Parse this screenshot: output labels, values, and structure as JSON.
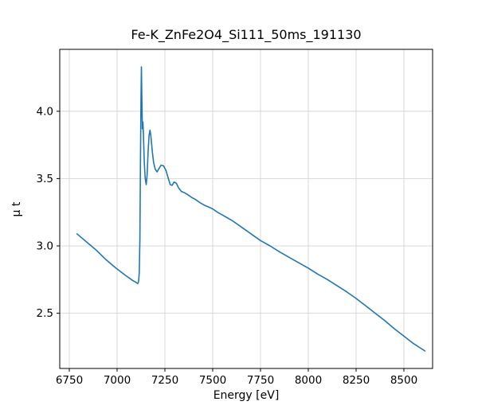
{
  "chart_data": {
    "type": "line",
    "title": "Fe-K_ZnFe2O4_Si111_50ms_191130",
    "xlabel": "Energy [eV]",
    "ylabel": "μ t",
    "xlim": [
      6700,
      8650
    ],
    "ylim": [
      2.09,
      4.46
    ],
    "xticks": [
      6750,
      7000,
      7250,
      7500,
      7750,
      8000,
      8250,
      8500
    ],
    "xtick_labels": [
      "6750",
      "7000",
      "7250",
      "7500",
      "7750",
      "8000",
      "8250",
      "8500"
    ],
    "yticks": [
      2.5,
      3.0,
      3.5,
      4.0
    ],
    "ytick_labels": [
      "2.5",
      "3.0",
      "3.5",
      "4.0"
    ],
    "grid": true,
    "grid_color": "#cfcfcf",
    "axes_color": "#000000",
    "line_color": "#1f77b4",
    "series": [
      {
        "name": "mu_t_spectrum",
        "points": [
          [
            6790,
            3.09
          ],
          [
            6840,
            3.03
          ],
          [
            6890,
            2.97
          ],
          [
            6940,
            2.9
          ],
          [
            6990,
            2.84
          ],
          [
            7040,
            2.785
          ],
          [
            7080,
            2.745
          ],
          [
            7100,
            2.728
          ],
          [
            7108,
            2.72
          ],
          [
            7112,
            2.735
          ],
          [
            7116,
            2.8
          ],
          [
            7119,
            3.05
          ],
          [
            7122,
            3.62
          ],
          [
            7125,
            4.1
          ],
          [
            7127,
            4.33
          ],
          [
            7129,
            4.12
          ],
          [
            7132,
            3.87
          ],
          [
            7135,
            3.92
          ],
          [
            7138,
            3.82
          ],
          [
            7142,
            3.62
          ],
          [
            7147,
            3.5
          ],
          [
            7152,
            3.455
          ],
          [
            7157,
            3.53
          ],
          [
            7162,
            3.7
          ],
          [
            7167,
            3.82
          ],
          [
            7172,
            3.86
          ],
          [
            7177,
            3.81
          ],
          [
            7184,
            3.7
          ],
          [
            7191,
            3.62
          ],
          [
            7199,
            3.57
          ],
          [
            7209,
            3.55
          ],
          [
            7219,
            3.575
          ],
          [
            7230,
            3.6
          ],
          [
            7243,
            3.595
          ],
          [
            7256,
            3.56
          ],
          [
            7268,
            3.5
          ],
          [
            7278,
            3.455
          ],
          [
            7288,
            3.45
          ],
          [
            7298,
            3.475
          ],
          [
            7310,
            3.465
          ],
          [
            7322,
            3.43
          ],
          [
            7336,
            3.405
          ],
          [
            7352,
            3.395
          ],
          [
            7370,
            3.38
          ],
          [
            7390,
            3.36
          ],
          [
            7410,
            3.345
          ],
          [
            7435,
            3.32
          ],
          [
            7460,
            3.3
          ],
          [
            7485,
            3.285
          ],
          [
            7500,
            3.275
          ],
          [
            7525,
            3.25
          ],
          [
            7550,
            3.23
          ],
          [
            7575,
            3.21
          ],
          [
            7600,
            3.19
          ],
          [
            7650,
            3.14
          ],
          [
            7700,
            3.09
          ],
          [
            7750,
            3.04
          ],
          [
            7800,
            3.0
          ],
          [
            7850,
            2.955
          ],
          [
            7900,
            2.915
          ],
          [
            7950,
            2.875
          ],
          [
            8000,
            2.835
          ],
          [
            8050,
            2.79
          ],
          [
            8100,
            2.75
          ],
          [
            8150,
            2.705
          ],
          [
            8200,
            2.66
          ],
          [
            8250,
            2.61
          ],
          [
            8300,
            2.555
          ],
          [
            8350,
            2.5
          ],
          [
            8400,
            2.445
          ],
          [
            8450,
            2.385
          ],
          [
            8500,
            2.33
          ],
          [
            8550,
            2.275
          ],
          [
            8610,
            2.22
          ]
        ]
      }
    ]
  }
}
